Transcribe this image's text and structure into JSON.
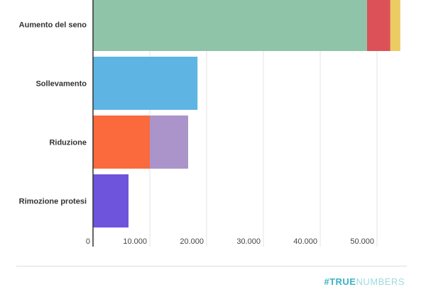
{
  "chart_data": {
    "type": "bar",
    "orientation": "horizontal",
    "stacked": true,
    "categories": [
      "Aumento del seno",
      "Sollevamento",
      "Riduzione",
      "Rimozione protesi"
    ],
    "segments": [
      [
        {
          "value": 48250,
          "color": "#8fc4a9"
        },
        {
          "value": 4100,
          "color": "#dc5157"
        },
        {
          "value": 1750,
          "color": "#eccb62"
        }
      ],
      [
        {
          "value": 18400,
          "color": "#5eb5e3"
        }
      ],
      [
        {
          "value": 10000,
          "color": "#fa6a3c"
        },
        {
          "value": 6750,
          "color": "#ab94c9"
        }
      ],
      [
        {
          "value": 6250,
          "color": "#6e54dc"
        }
      ]
    ],
    "xticks": [
      0,
      10000,
      20000,
      30000,
      40000,
      50000
    ],
    "xtick_labels": [
      "0",
      "10.000",
      "20.000",
      "30.000",
      "40.000",
      "50.000"
    ],
    "xlim": [
      0,
      58000
    ],
    "grid": true
  },
  "footer": {
    "brand_a": "#TRUE",
    "brand_b": "NUMBERS"
  }
}
